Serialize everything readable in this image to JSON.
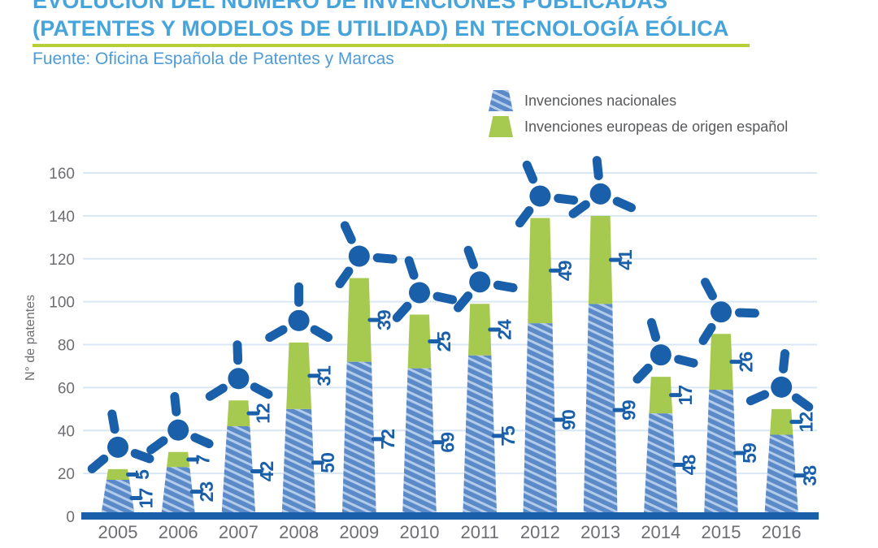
{
  "header": {
    "title_line1": "EVOLUCIÓN DEL NÚMERO DE INVENCIONES PUBLICADAS",
    "title_line2": "(PATENTES Y MODELOS DE UTILIDAD) EN TECNOLOGÍA EÓLICA",
    "source": "Fuente: Oficina Española de Patentes y Marcas"
  },
  "legend": {
    "items": [
      {
        "label": "Invenciones nacionales",
        "swatch": "striped-blue-bar"
      },
      {
        "label": "Invenciones europeas de origen español",
        "swatch": "green-bar"
      }
    ]
  },
  "chart_data": {
    "type": "bar",
    "stacked": true,
    "marker": "wind-turbine-icon",
    "categories": [
      "2005",
      "2006",
      "2007",
      "2008",
      "2009",
      "2010",
      "2011",
      "2012",
      "2013",
      "2014",
      "2015",
      "2016"
    ],
    "series": [
      {
        "name": "Invenciones nacionales",
        "values": [
          17,
          23,
          42,
          50,
          72,
          69,
          75,
          90,
          99,
          48,
          59,
          38
        ]
      },
      {
        "name": "Invenciones europeas de origen español",
        "values": [
          5,
          7,
          12,
          31,
          39,
          25,
          24,
          49,
          41,
          17,
          26,
          12
        ]
      }
    ],
    "totals": [
      22,
      30,
      54,
      81,
      111,
      94,
      99,
      139,
      140,
      65,
      85,
      50
    ],
    "title": "",
    "xlabel": "",
    "ylabel": "N° de patentes",
    "yticks": [
      0,
      20,
      40,
      60,
      80,
      100,
      120,
      140,
      160
    ],
    "ylim": [
      0,
      160
    ],
    "grid": true,
    "legend_position": "top-right"
  },
  "colors": {
    "title_blue": "#47a4da",
    "source_blue": "#4f9bd5",
    "rule_green": "#b7cf36",
    "bar_green": "#a6c94f",
    "bar_blue_mid": "#5b8ac9",
    "bar_blue_light": "#b4cbe9",
    "dark_blue": "#1a5fa9",
    "grid_line": "#d9e7f4",
    "axis_gray": "#6d6e71",
    "label_gray": "#58595b"
  }
}
